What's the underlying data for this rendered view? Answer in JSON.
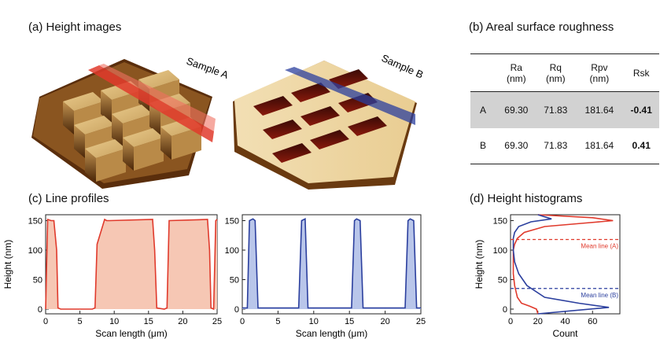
{
  "panels": {
    "a": {
      "title": "(a) Height images",
      "sample_a_label": "Sample A",
      "sample_b_label": "Sample B"
    },
    "b": {
      "title": "(b) Areal surface roughness"
    },
    "c": {
      "title": "(c) Line profiles"
    },
    "d": {
      "title": "(d) Height histograms"
    }
  },
  "colors": {
    "sample_a": "#e03a2c",
    "sample_b": "#2b3f9e",
    "fill_a": "#f6c7b4",
    "fill_b": "#b9c6ea",
    "table_shade": "#d2d2d2"
  },
  "table": {
    "headers": [
      {
        "name": "",
        "unit": ""
      },
      {
        "name": "Ra",
        "unit": "(nm)"
      },
      {
        "name": "Rq",
        "unit": "(nm)"
      },
      {
        "name": "Rpv",
        "unit": "(nm)"
      },
      {
        "name": "Rsk",
        "unit": ""
      }
    ],
    "rows": [
      {
        "sample": "A",
        "ra": "69.30",
        "rq": "71.83",
        "rpv": "181.64",
        "rsk": "-0.41"
      },
      {
        "sample": "B",
        "ra": "69.30",
        "rq": "71.83",
        "rpv": "181.64",
        "rsk": "0.41"
      }
    ]
  },
  "chart_data": [
    {
      "type": "area",
      "ylabel": "Height (nm)",
      "xlabel": "Scan length (μm)",
      "xlim": [
        0,
        25
      ],
      "ylim": [
        -8,
        160
      ],
      "xticks": [
        0,
        5,
        10,
        15,
        20,
        25
      ],
      "yticks": [
        0,
        50,
        100,
        150
      ],
      "series": [
        {
          "x": [
            0.0,
            0.3,
            0.8,
            1.2,
            1.6,
            1.8,
            2.2,
            6.8,
            7.2,
            7.5,
            8.6,
            8.9,
            9.3,
            15.6,
            15.9,
            16.2,
            17.3,
            17.7,
            18.0,
            23.6,
            23.9,
            24.1,
            24.5,
            24.8,
            25.0
          ],
          "y": [
            0,
            152,
            150,
            150,
            100,
            2,
            0,
            0,
            2,
            110,
            152,
            150,
            150,
            152,
            100,
            2,
            0,
            2,
            150,
            152,
            100,
            2,
            0,
            150,
            152
          ]
        }
      ]
    },
    {
      "type": "area",
      "ylabel": "",
      "xlabel": "Scan length (μm)",
      "xlim": [
        0,
        25
      ],
      "ylim": [
        -8,
        160
      ],
      "xticks": [
        0,
        5,
        10,
        15,
        20,
        25
      ],
      "yticks": [
        0,
        50,
        100,
        150
      ],
      "series": [
        {
          "x": [
            0.0,
            0.7,
            1.0,
            1.5,
            1.8,
            2.2,
            7.5,
            7.9,
            8.3,
            8.8,
            9.2,
            15.3,
            15.7,
            16.0,
            16.5,
            16.9,
            22.8,
            23.2,
            23.5,
            24.0,
            24.4,
            25.0
          ],
          "y": [
            2,
            2,
            150,
            153,
            150,
            2,
            2,
            2,
            150,
            153,
            2,
            2,
            150,
            153,
            150,
            2,
            2,
            150,
            153,
            150,
            2,
            2
          ]
        }
      ]
    },
    {
      "type": "line",
      "ylabel": "Height (nm)",
      "xlabel": "Count",
      "xlim": [
        0,
        80
      ],
      "ylim": [
        -8,
        160
      ],
      "xticks": [
        0,
        20,
        40,
        60
      ],
      "yticks": [
        0,
        50,
        100,
        150
      ],
      "series": [
        {
          "x": [
            20,
            19,
            14,
            8,
            5,
            3,
            2,
            2,
            2,
            3,
            5,
            10,
            25,
            55,
            75,
            60,
            20
          ],
          "y": [
            -8,
            0,
            5,
            10,
            20,
            40,
            60,
            80,
            100,
            110,
            120,
            130,
            140,
            146,
            150,
            155,
            160
          ]
        },
        {
          "x": [
            20,
            72,
            50,
            25,
            12,
            6,
            3,
            2,
            2,
            2,
            3,
            6,
            15,
            30,
            20
          ],
          "y": [
            -8,
            3,
            10,
            20,
            40,
            60,
            80,
            100,
            110,
            120,
            130,
            140,
            148,
            153,
            160
          ]
        }
      ],
      "annotations": [
        {
          "label": "Mean line (A)",
          "y": 118
        },
        {
          "label": "Mean line (B)",
          "y": 35
        }
      ]
    }
  ]
}
